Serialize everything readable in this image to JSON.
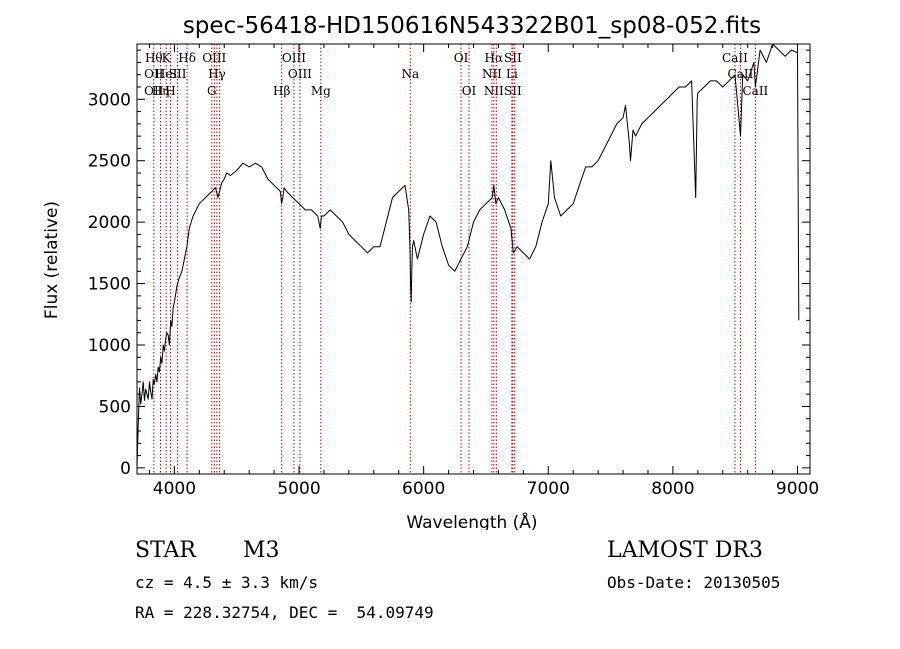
{
  "chart_data": {
    "type": "line",
    "title": "spec-56418-HD150616N543322B01_sp08-052.fits",
    "xlabel": "Wavelength (Å)",
    "ylabel": "Flux (relative)",
    "xlim": [
      3700,
      9100
    ],
    "ylim": [
      -50,
      3450
    ],
    "x_ticks": [
      4000,
      5000,
      6000,
      7000,
      8000,
      9000
    ],
    "y_ticks": [
      0,
      500,
      1000,
      1500,
      2000,
      2500,
      3000
    ],
    "grid": false,
    "line_color": "#000000",
    "marker_color": "#cc0000",
    "series": [
      {
        "x": [
          3700,
          3710,
          3720,
          3730,
          3740,
          3750,
          3760,
          3770,
          3780,
          3790,
          3800,
          3810,
          3820,
          3830,
          3840,
          3850,
          3860,
          3870,
          3880,
          3890,
          3900,
          3910,
          3920,
          3930,
          3940,
          3950,
          3960,
          3970,
          3980,
          3990,
          4000,
          4020,
          4040,
          4060,
          4080,
          4100,
          4120,
          4150,
          4200,
          4250,
          4300,
          4330,
          4350,
          4380,
          4400,
          4420,
          4450,
          4500,
          4550,
          4600,
          4650,
          4700,
          4750,
          4800,
          4850,
          4860,
          4870,
          4880,
          4900,
          4950,
          5000,
          5050,
          5100,
          5150,
          5170,
          5180,
          5200,
          5250,
          5300,
          5350,
          5400,
          5450,
          5500,
          5550,
          5600,
          5650,
          5700,
          5750,
          5800,
          5850,
          5880,
          5890,
          5895,
          5900,
          5905,
          5910,
          5920,
          5950,
          6000,
          6050,
          6100,
          6150,
          6200,
          6250,
          6300,
          6350,
          6400,
          6450,
          6500,
          6550,
          6563,
          6580,
          6600,
          6650,
          6700,
          6710,
          6720,
          6750,
          6800,
          6850,
          6900,
          6950,
          7000,
          7020,
          7050,
          7100,
          7150,
          7200,
          7250,
          7300,
          7350,
          7400,
          7450,
          7500,
          7550,
          7600,
          7620,
          7650,
          7660,
          7680,
          7700,
          7750,
          7800,
          7850,
          7900,
          7950,
          8000,
          8050,
          8100,
          8150,
          8183,
          8195,
          8200,
          8250,
          8300,
          8350,
          8400,
          8450,
          8498,
          8542,
          8560,
          8600,
          8650,
          8662,
          8700,
          8750,
          8800,
          8850,
          8900,
          8950,
          9000,
          9010
        ],
        "y": [
          0,
          350,
          650,
          520,
          600,
          700,
          550,
          640,
          600,
          560,
          700,
          620,
          560,
          720,
          680,
          760,
          700,
          820,
          780,
          900,
          850,
          1000,
          950,
          1050,
          1100,
          1080,
          1000,
          1200,
          1150,
          1300,
          1350,
          1480,
          1550,
          1600,
          1700,
          1800,
          1950,
          2050,
          2150,
          2200,
          2250,
          2280,
          2200,
          2320,
          2350,
          2400,
          2380,
          2420,
          2480,
          2450,
          2480,
          2450,
          2350,
          2300,
          2250,
          2150,
          2200,
          2280,
          2250,
          2200,
          2150,
          2100,
          2100,
          2050,
          1950,
          2050,
          2050,
          2100,
          2050,
          2000,
          1900,
          1850,
          1800,
          1750,
          1800,
          1800,
          2000,
          2200,
          2250,
          2300,
          2100,
          1800,
          1500,
          1350,
          1600,
          1800,
          1850,
          1700,
          1900,
          2050,
          2000,
          1800,
          1650,
          1600,
          1700,
          1800,
          2000,
          2100,
          2150,
          2200,
          2300,
          2150,
          2200,
          2100,
          1950,
          1850,
          1750,
          1800,
          1750,
          1700,
          1800,
          2000,
          2150,
          2500,
          2200,
          2050,
          2100,
          2150,
          2300,
          2450,
          2450,
          2500,
          2600,
          2700,
          2800,
          2850,
          2950,
          2650,
          2500,
          2750,
          2700,
          2800,
          2850,
          2900,
          2950,
          3000,
          3050,
          3100,
          3100,
          3150,
          2200,
          3000,
          3050,
          3100,
          3150,
          3150,
          3100,
          3150,
          3200,
          2700,
          3200,
          3150,
          3300,
          3100,
          3400,
          3300,
          3450,
          3400,
          3350,
          3400,
          3380,
          1200
        ]
      }
    ],
    "line_markers": [
      {
        "x": 3835,
        "top": "Hθ",
        "mid": "OII",
        "bot": "OII"
      },
      {
        "x": 3889,
        "top": "",
        "mid": "",
        "bot": "Hη"
      },
      {
        "x": 3934,
        "top": "K",
        "mid": "HeI",
        "bot": ""
      },
      {
        "x": 3969,
        "top": "",
        "mid": "",
        "bot": "H"
      },
      {
        "x": 4026,
        "top": "",
        "mid": "SII",
        "bot": ""
      },
      {
        "x": 4102,
        "top": "Hδ",
        "mid": "",
        "bot": ""
      },
      {
        "x": 4300,
        "top": "",
        "mid": "",
        "bot": "G"
      },
      {
        "x": 4320,
        "top": "OIII",
        "mid": "",
        "bot": ""
      },
      {
        "x": 4341,
        "top": "",
        "mid": "Hγ",
        "bot": ""
      },
      {
        "x": 4363,
        "top": "",
        "mid": "",
        "bot": ""
      },
      {
        "x": 4861,
        "top": "",
        "mid": "",
        "bot": "Hβ"
      },
      {
        "x": 4959,
        "top": "OIII",
        "mid": "",
        "bot": ""
      },
      {
        "x": 5007,
        "top": "",
        "mid": "OIII",
        "bot": ""
      },
      {
        "x": 5175,
        "top": "",
        "mid": "",
        "bot": "Mg"
      },
      {
        "x": 5893,
        "top": "",
        "mid": "Na",
        "bot": ""
      },
      {
        "x": 6300,
        "top": "OI",
        "mid": "",
        "bot": ""
      },
      {
        "x": 6364,
        "top": "",
        "mid": "",
        "bot": "OI"
      },
      {
        "x": 6548,
        "top": "",
        "mid": "NII",
        "bot": ""
      },
      {
        "x": 6563,
        "top": "Hα",
        "mid": "",
        "bot": "NII"
      },
      {
        "x": 6583,
        "top": "",
        "mid": "",
        "bot": ""
      },
      {
        "x": 6708,
        "top": "",
        "mid": "Li",
        "bot": ""
      },
      {
        "x": 6716,
        "top": "SII",
        "mid": "",
        "bot": "SII"
      },
      {
        "x": 6731,
        "top": "",
        "mid": "",
        "bot": ""
      },
      {
        "x": 8498,
        "top": "CaII",
        "mid": "",
        "bot": ""
      },
      {
        "x": 8542,
        "top": "",
        "mid": "CaII",
        "bot": ""
      },
      {
        "x": 8662,
        "top": "",
        "mid": "",
        "bot": "CaII"
      }
    ]
  },
  "info": {
    "object_class": "STAR",
    "subclass": "M3",
    "survey": "LAMOST DR3",
    "cz": "cz = 4.5 ± 3.3 km/s",
    "obs_date": "Obs-Date: 20130505",
    "coords": "RA = 228.32754, DEC =  54.09749"
  }
}
